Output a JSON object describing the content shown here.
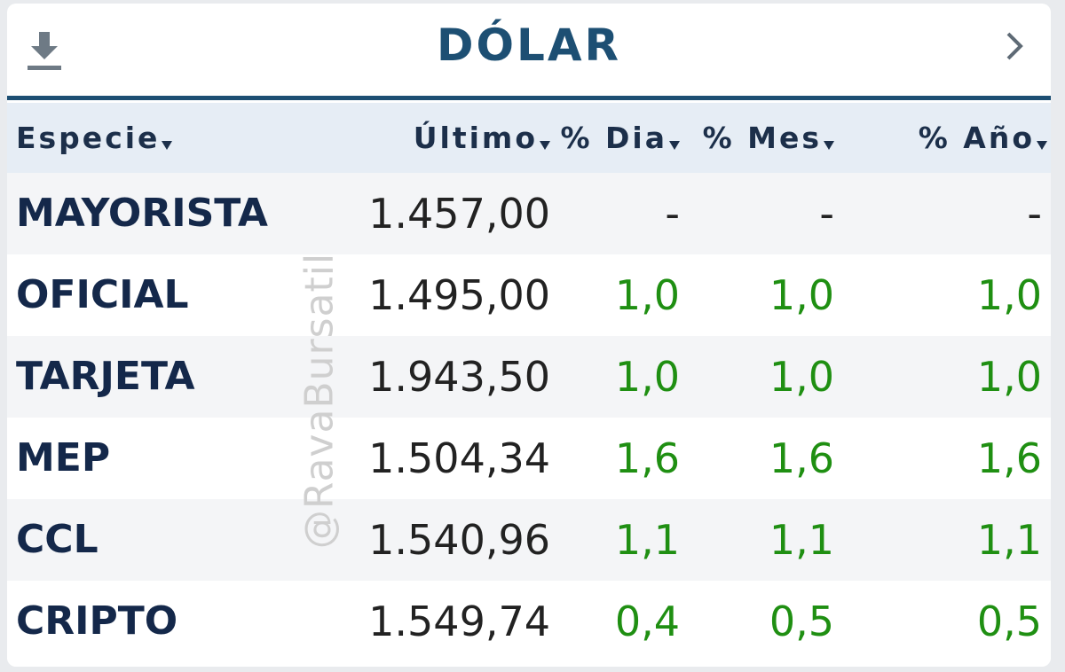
{
  "header": {
    "title": "DÓLAR"
  },
  "watermark": "@RavaBursatil",
  "table": {
    "columns": [
      "Especie",
      "Último",
      "% Dia",
      "% Mes",
      "% Año"
    ],
    "rows": [
      [
        "MAYORISTA",
        "1.457,00",
        "-",
        "-",
        "-"
      ],
      [
        "OFICIAL",
        "1.495,00",
        "1,0",
        "1,0",
        "1,0"
      ],
      [
        "TARJETA",
        "1.943,50",
        "1,0",
        "1,0",
        "1,0"
      ],
      [
        "MEP",
        "1.504,34",
        "1,6",
        "1,6",
        "1,6"
      ],
      [
        "CCL",
        "1.540,96",
        "1,1",
        "1,1",
        "1,1"
      ],
      [
        "CRIPTO",
        "1.549,74",
        "0,4",
        "0,5",
        "0,5"
      ]
    ]
  }
}
